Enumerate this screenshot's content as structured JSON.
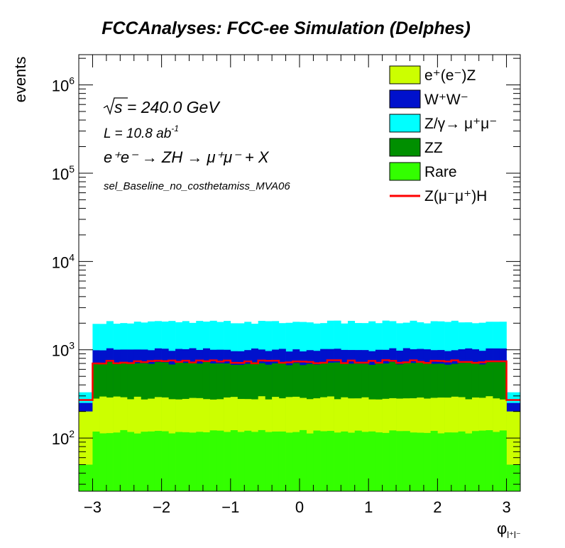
{
  "chart_data": {
    "type": "area",
    "title": "FCCAnalyses: FCC-ee Simulation (Delphes)",
    "ylabel": "events",
    "xlabel_base": "φ",
    "xlabel_sub": "l⁺l⁻",
    "xlim": [
      -3.2,
      3.2
    ],
    "ylim": [
      25,
      2200000
    ],
    "yscale": "log",
    "x_ticks": [
      {
        "value": -3,
        "label": "−3"
      },
      {
        "value": -2,
        "label": "−2"
      },
      {
        "value": -1,
        "label": "−1"
      },
      {
        "value": 0,
        "label": "0"
      },
      {
        "value": 1,
        "label": "1"
      },
      {
        "value": 2,
        "label": "2"
      },
      {
        "value": 3,
        "label": "3"
      }
    ],
    "y_ticks": [
      {
        "value": 100,
        "base": "10",
        "exp": "2"
      },
      {
        "value": 1000,
        "base": "10",
        "exp": "3"
      },
      {
        "value": 10000,
        "base": "10",
        "exp": "4"
      },
      {
        "value": 100000,
        "base": "10",
        "exp": "5"
      },
      {
        "value": 1000000,
        "base": "10",
        "exp": "6"
      }
    ],
    "annotations": {
      "sqrt_s": "s = 240.0 GeV",
      "lumi": "L = 10.8 ab",
      "lumi_exp": "-1",
      "process": "e⁺e⁻ → ZH → μ⁺μ⁻ + X",
      "selection": "sel_Baseline_no_costhetamiss_MVA06"
    },
    "x_bins": {
      "min": -3.2,
      "max": 3.2,
      "count": 64
    },
    "interior_bins": [
      2,
      61
    ],
    "edge_bins_cumulative": {
      "rare": 50,
      "ZZ": 150,
      "eeZ": 200,
      "WW": 250,
      "Zgamma": 330,
      "signal": 270
    },
    "interior_levels_cumulative": {
      "rare": 118,
      "eeZ": 285,
      "ZZ": 700,
      "WW": 1000,
      "Zgamma": 2050,
      "signal": 730
    },
    "legend_position": "top-right",
    "legend": [
      {
        "label": "e⁺(e⁻)Z",
        "color": "#ccff00",
        "kind": "fill"
      },
      {
        "label": "W⁺W⁻",
        "color": "#0011cc",
        "kind": "fill"
      },
      {
        "label": "Z/γ→ μ⁺μ⁻",
        "color": "#00ffff",
        "kind": "fill"
      },
      {
        "label": "ZZ",
        "color": "#008f00",
        "kind": "fill"
      },
      {
        "label": "Rare",
        "color": "#33ff00",
        "kind": "fill"
      },
      {
        "label": "Z(μ⁻μ⁺)H",
        "color": "#ff0000",
        "kind": "line"
      }
    ],
    "stack_order": [
      "rare",
      "eeZ",
      "ZZ",
      "WW",
      "Zgamma"
    ],
    "colors": {
      "rare": "#33ff00",
      "eeZ": "#ccff00",
      "ZZ": "#008f00",
      "WW": "#0011cc",
      "Zgamma": "#00ffff",
      "signal": "#ff0000"
    }
  }
}
